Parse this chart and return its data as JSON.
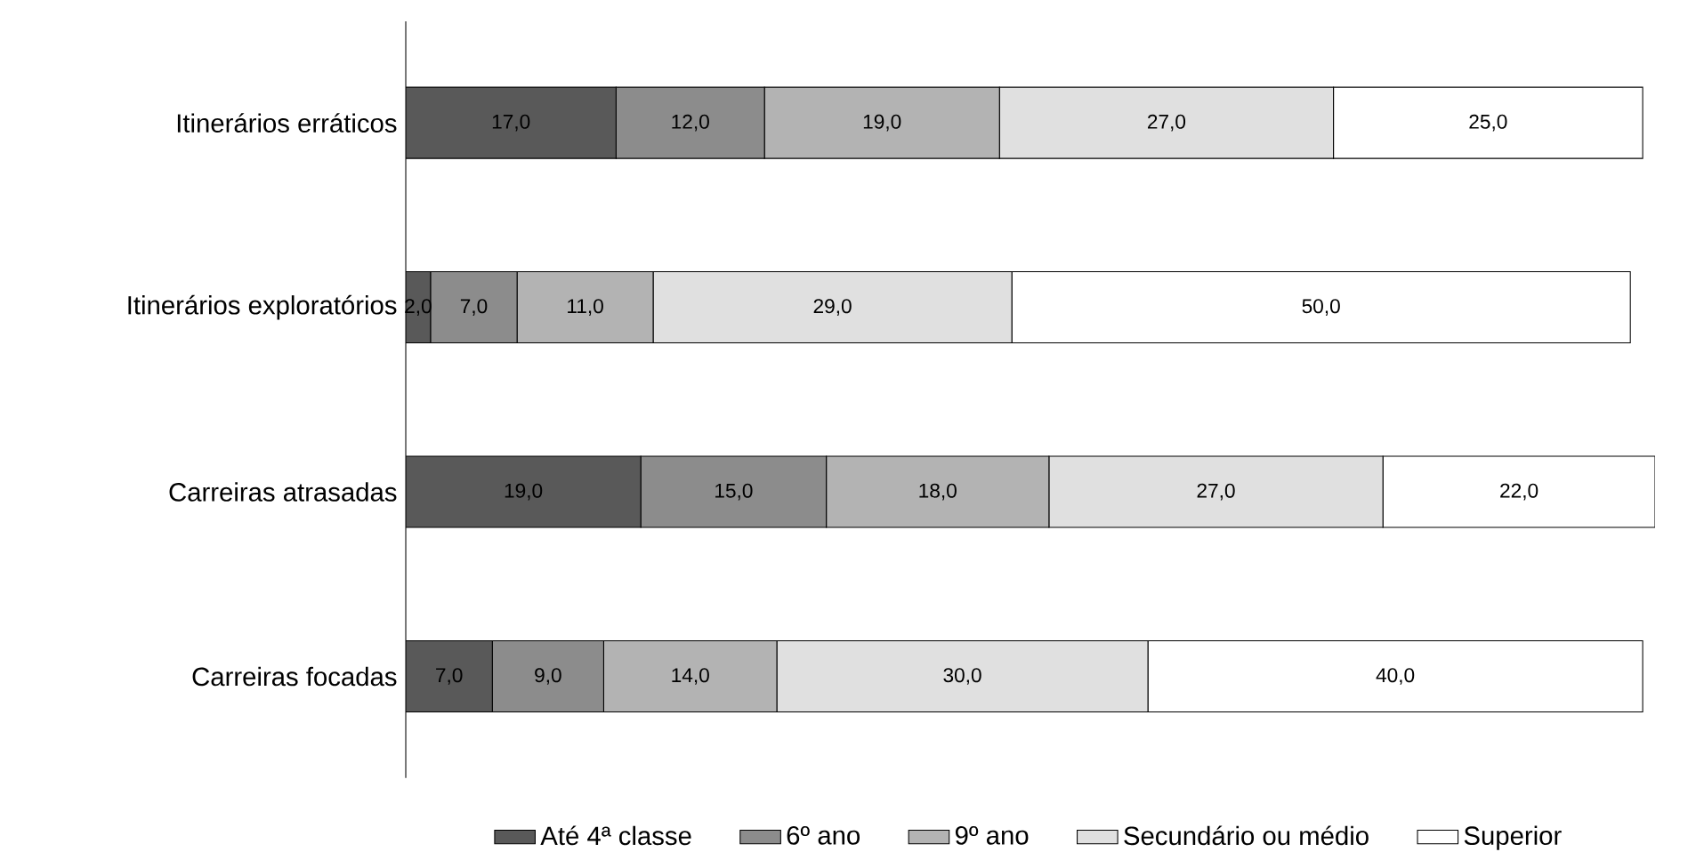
{
  "chart_data": {
    "type": "bar",
    "orientation": "horizontal",
    "stacked": true,
    "legend": "bottom",
    "categories": [
      "Itinerários erráticos",
      "Itinerários exploratórios",
      "Carreiras atrasadas",
      "Carreiras focadas"
    ],
    "series": [
      {
        "name": "Até 4ª classe",
        "color": "#595959",
        "values": [
          17,
          2,
          19,
          7
        ],
        "value_labels": [
          "17,0",
          "2,0",
          "19,0",
          "7,0"
        ]
      },
      {
        "name": "6º ano",
        "color": "#8c8c8c",
        "values": [
          12,
          7,
          15,
          9
        ],
        "value_labels": [
          "12,0",
          "7,0",
          "15,0",
          "9,0"
        ]
      },
      {
        "name": "9º ano",
        "color": "#b3b3b3",
        "values": [
          19,
          11,
          18,
          14
        ],
        "value_labels": [
          "19,0",
          "11,0",
          "18,0",
          "14,0"
        ]
      },
      {
        "name": "Secundário ou médio",
        "color": "#e0e0e0",
        "values": [
          27,
          29,
          27,
          30
        ],
        "value_labels": [
          "27,0",
          "29,0",
          "27,0",
          "30,0"
        ]
      },
      {
        "name": "Superior",
        "color": "#ffffff",
        "values": [
          25,
          50,
          22,
          40
        ],
        "value_labels": [
          "25,0",
          "50,0",
          "22,0",
          "40,0"
        ]
      }
    ]
  }
}
